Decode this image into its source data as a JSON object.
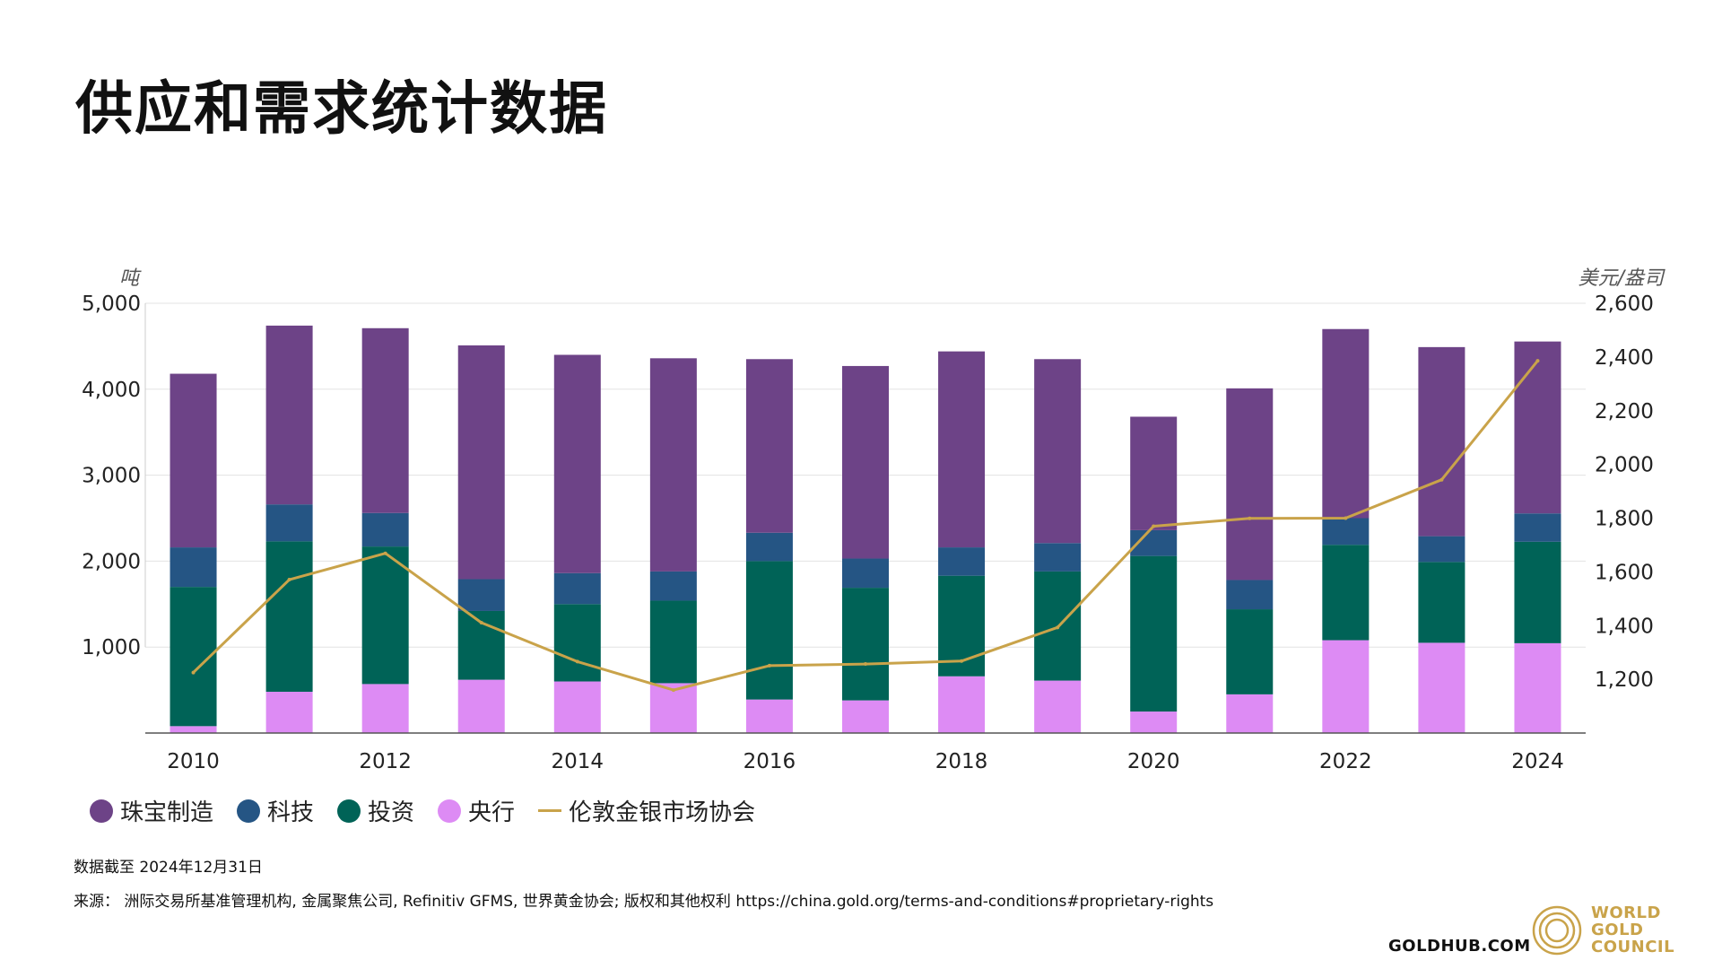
{
  "page": {
    "title": "供应和需求统计数据",
    "note_label": "数据截至 ",
    "note_date": "2024年12月31日",
    "source_label": "来源：",
    "source_text": "洲际交易所基准管理机构, 金属聚焦公司, Refinitiv GFMS, 世界黄金协会; 版权和其他权利 https://china.gold.org/terms-and-conditions#proprietary-rights",
    "footer_site": "GOLDHUB.COM",
    "brand": [
      "WORLD",
      "GOLD",
      "COUNCIL"
    ]
  },
  "colors": {
    "jewellery": "#6d4387",
    "technology": "#255584",
    "investment": "#006357",
    "central_banks": "#dd8bf4",
    "lbma": "#c9a34a",
    "grid": "#e3e3e3",
    "axis": "#555555"
  },
  "chart_data": {
    "type": "bar",
    "stacked": true,
    "categories": [
      "2010",
      "2011",
      "2012",
      "2013",
      "2014",
      "2015",
      "2016",
      "2017",
      "2018",
      "2019",
      "2020",
      "2021",
      "2022",
      "2023",
      "2024"
    ],
    "x_tick_labels": [
      "2010",
      "2012",
      "2014",
      "2016",
      "2018",
      "2020",
      "2022",
      "2024"
    ],
    "y_left": {
      "label": "吨",
      "min": 0,
      "max": 5000,
      "ticks": [
        1000,
        2000,
        3000,
        4000,
        5000
      ],
      "tick_labels": [
        "1,000",
        "2,000",
        "3,000",
        "4,000",
        "5,000"
      ]
    },
    "y_right": {
      "label": "美元/盎司",
      "min": 1000,
      "max": 2600,
      "ticks": [
        1200,
        1400,
        1600,
        1800,
        2000,
        2200,
        2400,
        2600
      ],
      "tick_labels": [
        "1,200",
        "1,400",
        "1,600",
        "1,800",
        "2,000",
        "2,200",
        "2,400",
        "2,600"
      ]
    },
    "series": [
      {
        "key": "central_banks",
        "name": "央行",
        "values": [
          80,
          480,
          570,
          620,
          600,
          580,
          390,
          380,
          660,
          610,
          250,
          450,
          1080,
          1050,
          1045
        ]
      },
      {
        "key": "investment",
        "name": "投资",
        "values": [
          1620,
          1750,
          1600,
          800,
          900,
          960,
          1610,
          1310,
          1170,
          1270,
          1810,
          990,
          1110,
          940,
          1180
        ]
      },
      {
        "key": "technology",
        "name": "科技",
        "values": [
          460,
          430,
          390,
          370,
          360,
          340,
          330,
          340,
          330,
          330,
          300,
          340,
          310,
          300,
          330
        ]
      },
      {
        "key": "jewellery",
        "name": "珠宝制造",
        "values": [
          2020,
          2080,
          2150,
          2720,
          2540,
          2480,
          2020,
          2240,
          2280,
          2140,
          1320,
          2230,
          2200,
          2200,
          2000
        ]
      }
    ],
    "line": {
      "key": "lbma",
      "name": "伦敦金银市场协会",
      "axis": "right",
      "values": [
        1225,
        1571,
        1669,
        1411,
        1266,
        1160,
        1251,
        1257,
        1268,
        1393,
        1770,
        1799,
        1800,
        1943,
        2386
      ]
    },
    "legend": [
      "珠宝制造",
      "科技",
      "投资",
      "央行",
      "伦敦金银市场协会"
    ]
  }
}
